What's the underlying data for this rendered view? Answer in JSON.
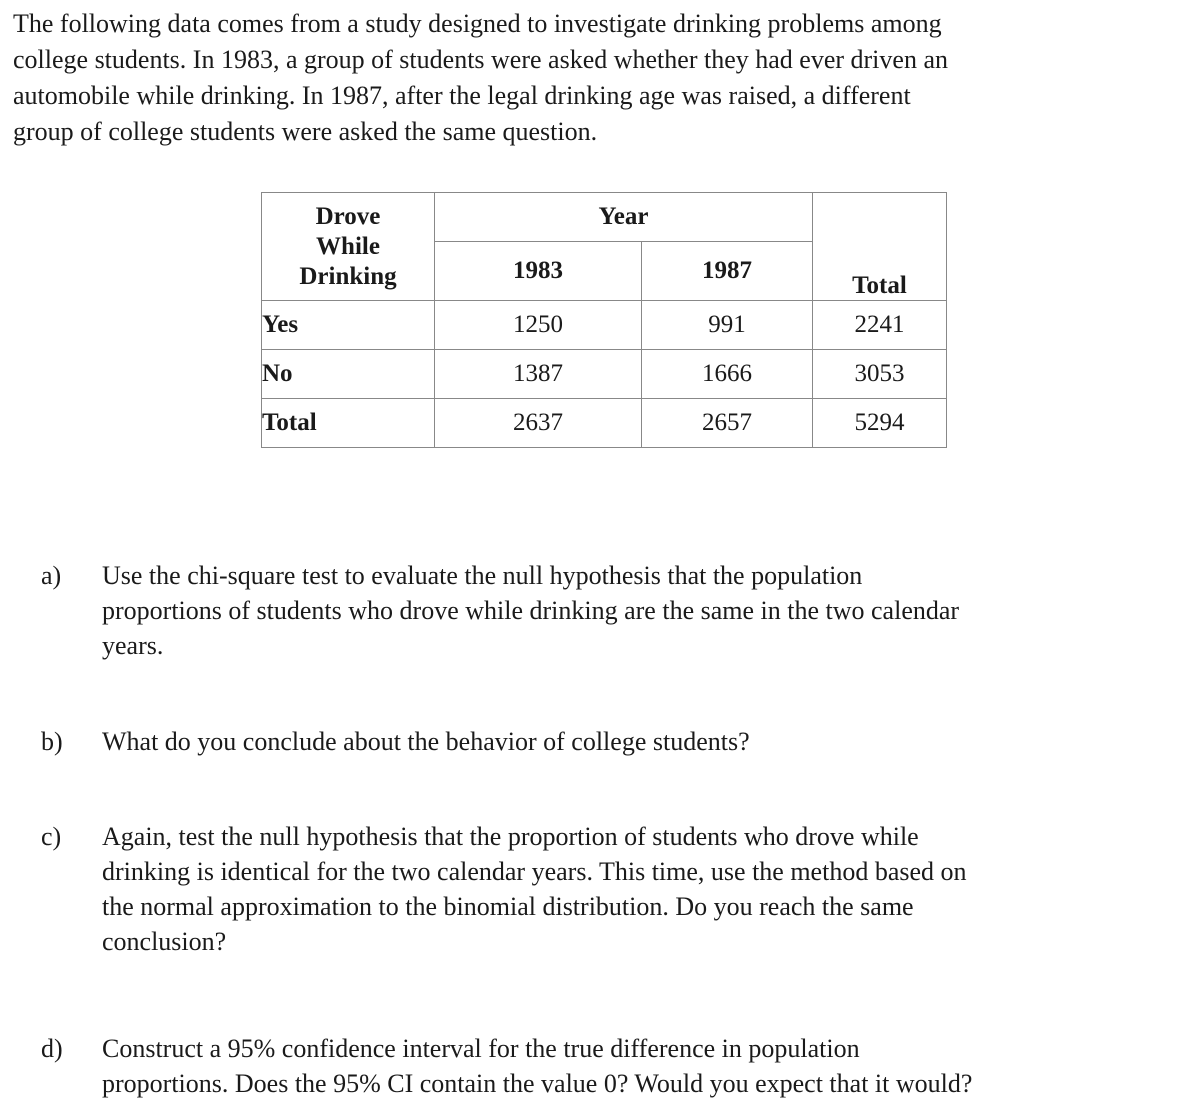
{
  "colors": {
    "text": "#1a1a1a",
    "table_border": "#888888",
    "background": "#ffffff"
  },
  "intro": "The following data comes from a study designed to investigate drinking problems among\ncollege students. In 1983, a group of students were asked whether they had ever driven an\nautomobile while drinking. In 1987, after the legal drinking age was raised, a different\ngroup of college students were asked the same question.",
  "table": {
    "corner_header": "Drove While Drinking",
    "year_header": "Year",
    "col_headers": [
      "1983",
      "1987"
    ],
    "total_header": "Total",
    "rows": [
      {
        "label": "Yes",
        "y1983": "1250",
        "y1987": "991",
        "total": "2241"
      },
      {
        "label": "No",
        "y1983": "1387",
        "y1987": "1666",
        "total": "3053"
      },
      {
        "label": "Total",
        "y1983": "2637",
        "y1987": "2657",
        "total": "5294"
      }
    ]
  },
  "chart_data": {
    "type": "table",
    "title": "Drove While Drinking by Year",
    "row_header": "Drove While Drinking",
    "column_group": "Year",
    "columns": [
      "1983",
      "1987",
      "Total"
    ],
    "rows": [
      {
        "category": "Yes",
        "values": [
          1250,
          991,
          2241
        ]
      },
      {
        "category": "No",
        "values": [
          1387,
          1666,
          3053
        ]
      },
      {
        "category": "Total",
        "values": [
          2637,
          2657,
          5294
        ]
      }
    ]
  },
  "questions": [
    {
      "label": "a)",
      "text": "Use the chi-square test to evaluate the null hypothesis that the population\nproportions of students who drove while drinking are the same in the two calendar\nyears."
    },
    {
      "label": "b)",
      "text": "What do you conclude about the behavior of college students?"
    },
    {
      "label": "c)",
      "text": "Again, test the null hypothesis that the proportion of students who drove while\ndrinking is identical for the two calendar years. This time, use the method based on\nthe normal approximation to the binomial distribution. Do you reach the same\nconclusion?"
    },
    {
      "label": "d)",
      "text": "Construct a 95% confidence interval for the true difference in population\nproportions. Does the 95% CI contain the value 0? Would you expect that it would?"
    }
  ]
}
